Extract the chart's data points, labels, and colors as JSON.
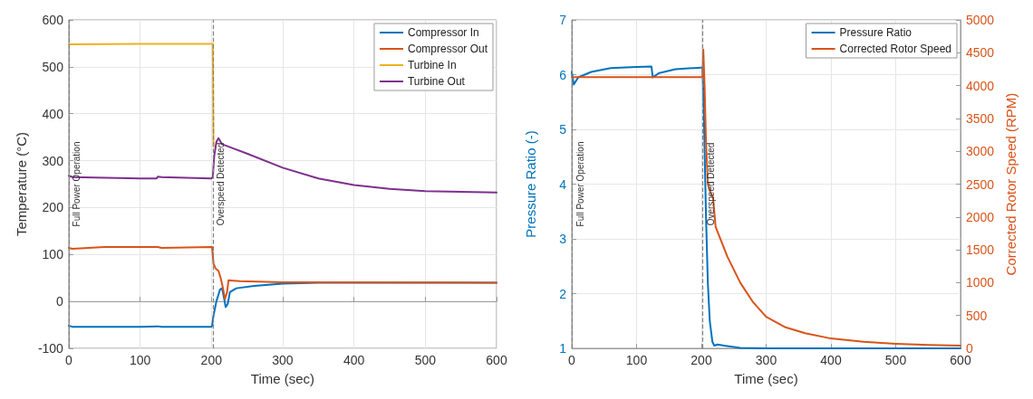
{
  "chart_data": [
    {
      "type": "line",
      "xlabel": "Time (sec)",
      "ylabel": "Temperature (°C)",
      "xlim": [
        0,
        600
      ],
      "ylim": [
        -100,
        600
      ],
      "xticks": [
        0,
        100,
        200,
        300,
        400,
        500,
        600
      ],
      "yticks": [
        -100,
        0,
        100,
        200,
        300,
        400,
        500,
        600
      ],
      "grid": true,
      "legend": "top right",
      "marker": "none",
      "line_style": "solid",
      "ref_lines": [
        {
          "axis": "x",
          "value": 0,
          "label": "Full Power Operation",
          "color": "#808080",
          "line_style": "dashed"
        },
        {
          "axis": "x",
          "value": 202,
          "label": "Overspeed Detected",
          "color": "#808080",
          "line_style": "dashed"
        }
      ],
      "series": [
        {
          "name": "Compressor In",
          "color": "#0072bd",
          "x": [
            0,
            5,
            100,
            125,
            130,
            200,
            201,
            203,
            207,
            212,
            215,
            218,
            220,
            223,
            226,
            235,
            260,
            300,
            350,
            600
          ],
          "values": [
            -52,
            -54,
            -54,
            -53,
            -54,
            -54,
            -52,
            -30,
            0,
            25,
            28,
            5,
            -12,
            -5,
            20,
            28,
            33,
            38,
            40,
            40
          ]
        },
        {
          "name": "Compressor Out",
          "color": "#d95319",
          "x": [
            0,
            5,
            50,
            125,
            130,
            200,
            201,
            203,
            206,
            210,
            213,
            216,
            219,
            222,
            224,
            240,
            300,
            600
          ],
          "values": [
            114,
            112,
            116,
            116,
            114,
            116,
            116,
            80,
            70,
            65,
            50,
            30,
            5,
            20,
            45,
            43,
            41,
            40
          ]
        },
        {
          "name": "Turbine In",
          "color": "#edb120",
          "x": [
            0,
            100,
            202,
            203
          ],
          "values": [
            548,
            549,
            549,
            330
          ]
        },
        {
          "name": "Turbine Out",
          "color": "#7e2f8e",
          "x": [
            0,
            5,
            100,
            123,
            125,
            130,
            200,
            202,
            204,
            207,
            210,
            215,
            250,
            300,
            350,
            400,
            450,
            500,
            600
          ],
          "values": [
            268,
            265,
            262,
            262,
            266,
            265,
            262,
            265,
            310,
            340,
            348,
            335,
            315,
            285,
            262,
            248,
            240,
            235,
            232
          ]
        }
      ]
    },
    {
      "type": "line",
      "xlabel": "Time (sec)",
      "ylabel": "Pressure Ratio (-)",
      "y2label": "Corrected Rotor Speed (RPM)",
      "xlim": [
        0,
        600
      ],
      "ylim": [
        1,
        7
      ],
      "y2lim": [
        0,
        5000
      ],
      "xticks": [
        0,
        100,
        200,
        300,
        400,
        500,
        600
      ],
      "yticks": [
        1,
        2,
        3,
        4,
        5,
        6,
        7
      ],
      "y2ticks": [
        0,
        500,
        1000,
        1500,
        2000,
        2500,
        3000,
        3500,
        4000,
        4500,
        5000
      ],
      "grid": true,
      "legend": "top right",
      "marker": "none",
      "line_style": "solid",
      "ref_lines": [
        {
          "axis": "x",
          "value": 0,
          "label": "Full Power Operation",
          "color": "#808080",
          "line_style": "dashed"
        },
        {
          "axis": "x",
          "value": 202,
          "label": "Overspeed Detected",
          "color": "#808080",
          "line_style": "dashed"
        }
      ],
      "series": [
        {
          "name": "Pressure Ratio",
          "color": "#0072bd",
          "x": [
            0,
            3,
            10,
            30,
            60,
            100,
            123,
            125,
            135,
            160,
            200,
            202,
            204,
            207,
            210,
            213,
            217,
            220,
            225,
            235,
            260,
            300,
            600
          ],
          "values": [
            6.05,
            5.82,
            5.95,
            6.05,
            6.12,
            6.14,
            6.15,
            5.95,
            6.03,
            6.1,
            6.13,
            6.13,
            5.2,
            3.5,
            2.2,
            1.5,
            1.12,
            1.05,
            1.07,
            1.05,
            1.01,
            1.0,
            1.0
          ]
        },
        {
          "name": "Corrected Rotor Speed",
          "color": "#d95319",
          "axis": "y2",
          "x": [
            0,
            200,
            202,
            203,
            205,
            207,
            210,
            213,
            218,
            222,
            240,
            260,
            280,
            300,
            330,
            360,
            400,
            450,
            500,
            550,
            600
          ],
          "values": [
            4130,
            4130,
            4130,
            4550,
            4000,
            3200,
            2500,
            2400,
            2300,
            1850,
            1400,
            1000,
            700,
            480,
            320,
            230,
            150,
            100,
            70,
            50,
            40
          ]
        }
      ]
    }
  ]
}
